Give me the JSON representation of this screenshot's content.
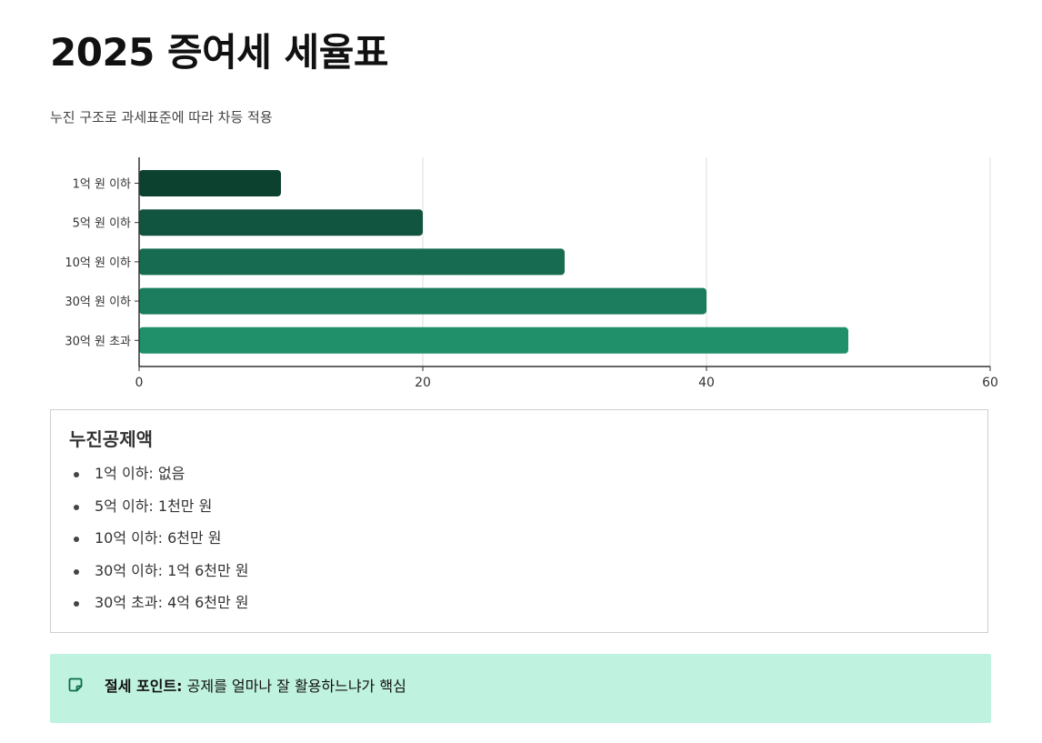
{
  "page": {
    "title": "2025 증여세 세율표",
    "subtitle": "누진 구조로 과세표준에 따라 차등 적용"
  },
  "chart_data": {
    "type": "bar",
    "orientation": "horizontal",
    "categories": [
      "1억 원 이하",
      "5억 원 이하",
      "10억 원 이하",
      "30억 원 이하",
      "30억 원 초과"
    ],
    "values": [
      10,
      20,
      30,
      40,
      50
    ],
    "xlim": [
      0,
      60
    ],
    "xticks": [
      "0",
      "20",
      "40",
      "60"
    ],
    "grid": true,
    "colors": [
      "#0c402f",
      "#115440",
      "#176b50",
      "#1b7d5e",
      "#1f906a"
    ]
  },
  "deductions": {
    "title": "누진공제액",
    "items": [
      "1억 이하: 없음",
      "5억 이하: 1천만 원",
      "10억 이하: 6천만 원",
      "30억 이하: 1억 6천만 원",
      "30억 초과: 4억 6천만 원"
    ]
  },
  "tip": {
    "icon": "sticky-note-icon",
    "label": "절세 포인트:",
    "text": " 공제를 얼마나 잘 활용하느냐가 핵심",
    "color": "#bff2df"
  }
}
